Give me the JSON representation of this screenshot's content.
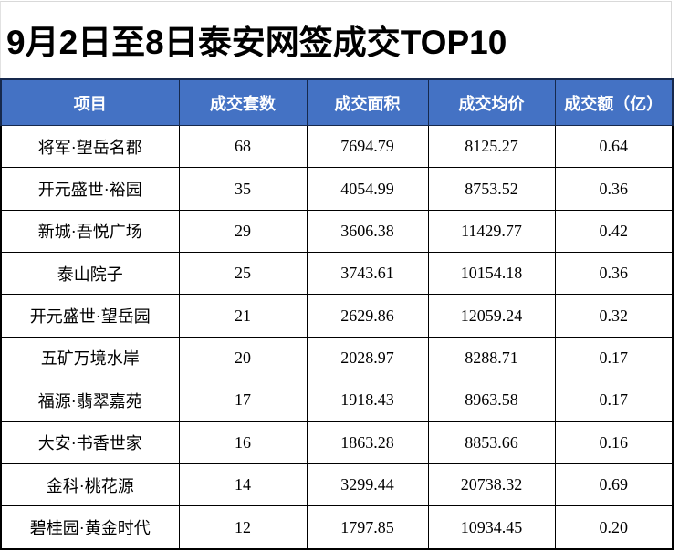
{
  "title": {
    "text": "9月2日至8日泰安网签成交TOP10"
  },
  "colors": {
    "header_bg": "#4472c4",
    "header_text": "#ffffff",
    "grid_border": "#000000",
    "header_divider": "#16294d",
    "title_text": "#000000",
    "page_bg": "#ffffff"
  },
  "table": {
    "columns": [
      {
        "label": "项目"
      },
      {
        "label": "成交套数"
      },
      {
        "label": "成交面积"
      },
      {
        "label": "成交均价"
      },
      {
        "label": "成交额（亿）"
      }
    ],
    "rows": [
      {
        "name": "将军·望岳名郡",
        "units": "68",
        "area": "7694.79",
        "price": "8125.27",
        "amount": "0.64"
      },
      {
        "name": "开元盛世·裕园",
        "units": "35",
        "area": "4054.99",
        "price": "8753.52",
        "amount": "0.36"
      },
      {
        "name": "新城·吾悦广场",
        "units": "29",
        "area": "3606.38",
        "price": "11429.77",
        "amount": "0.42"
      },
      {
        "name": "泰山院子",
        "units": "25",
        "area": "3743.61",
        "price": "10154.18",
        "amount": "0.36"
      },
      {
        "name": "开元盛世·望岳园",
        "units": "21",
        "area": "2629.86",
        "price": "12059.24",
        "amount": "0.32"
      },
      {
        "name": "五矿万境水岸",
        "units": "20",
        "area": "2028.97",
        "price": "8288.71",
        "amount": "0.17"
      },
      {
        "name": "福源·翡翠嘉苑",
        "units": "17",
        "area": "1918.43",
        "price": "8963.58",
        "amount": "0.17"
      },
      {
        "name": "大安·书香世家",
        "units": "16",
        "area": "1863.28",
        "price": "8853.66",
        "amount": "0.16"
      },
      {
        "name": "金科·桃花源",
        "units": "14",
        "area": "3299.44",
        "price": "20738.32",
        "amount": "0.69"
      },
      {
        "name": "碧桂园·黄金时代",
        "units": "12",
        "area": "1797.85",
        "price": "10934.45",
        "amount": "0.20"
      }
    ]
  },
  "chart_data": {
    "type": "table",
    "title": "9月2日至8日泰安网签成交TOP10",
    "columns": [
      "项目",
      "成交套数",
      "成交面积",
      "成交均价",
      "成交额（亿）"
    ],
    "rows": [
      [
        "将军·望岳名郡",
        68,
        7694.79,
        8125.27,
        0.64
      ],
      [
        "开元盛世·裕园",
        35,
        4054.99,
        8753.52,
        0.36
      ],
      [
        "新城·吾悦广场",
        29,
        3606.38,
        11429.77,
        0.42
      ],
      [
        "泰山院子",
        25,
        3743.61,
        10154.18,
        0.36
      ],
      [
        "开元盛世·望岳园",
        21,
        2629.86,
        12059.24,
        0.32
      ],
      [
        "五矿万境水岸",
        20,
        2028.97,
        8288.71,
        0.17
      ],
      [
        "福源·翡翠嘉苑",
        17,
        1918.43,
        8963.58,
        0.17
      ],
      [
        "大安·书香世家",
        16,
        1863.28,
        8853.66,
        0.16
      ],
      [
        "金科·桃花源",
        14,
        3299.44,
        20738.32,
        0.69
      ],
      [
        "碧桂园·黄金时代",
        12,
        1797.85,
        10934.45,
        0.2
      ]
    ]
  }
}
